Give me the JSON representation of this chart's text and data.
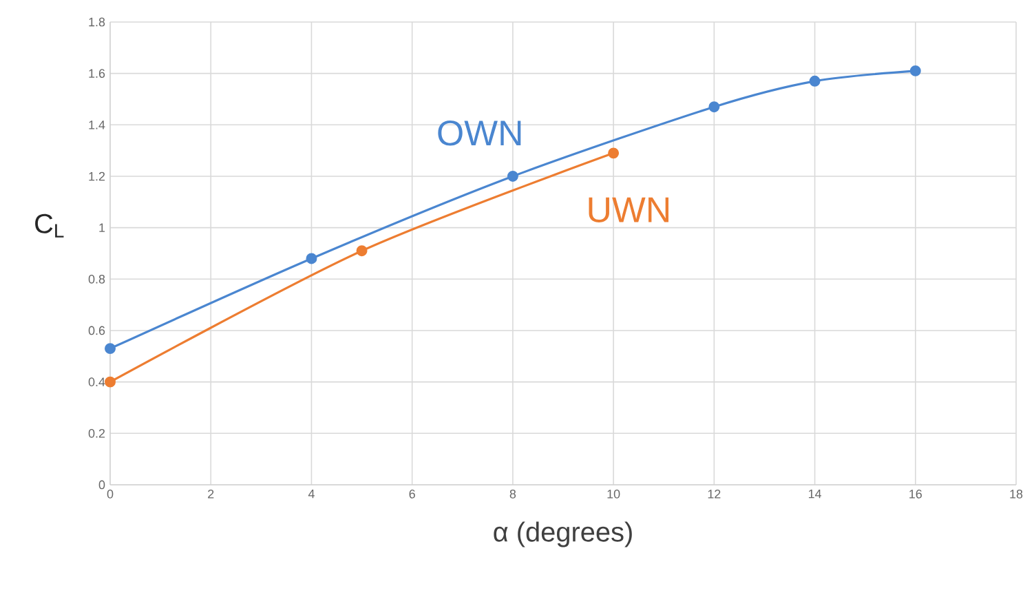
{
  "chart_data": {
    "type": "line",
    "xlabel": "α (degrees)",
    "ylabel": "C$_{L}$",
    "xlim": [
      0,
      18
    ],
    "xticks": [
      0,
      2,
      4,
      6,
      8,
      10,
      12,
      14,
      16,
      18
    ],
    "ylim": [
      0,
      1.8
    ],
    "yticks": [
      0,
      0.2,
      0.4,
      0.6,
      0.8,
      1,
      1.2,
      1.4,
      1.6,
      1.8
    ],
    "grid": true,
    "marker": "circle",
    "line_style": "solid",
    "series": [
      {
        "name": "OWN",
        "color": "#4a86d0",
        "x": [
          0,
          4,
          8,
          12,
          14,
          16
        ],
        "values": [
          0.53,
          0.88,
          1.2,
          1.47,
          1.57,
          1.61
        ]
      },
      {
        "name": "UWN",
        "color": "#ed7d31",
        "x": [
          0,
          5,
          10
        ],
        "values": [
          0.4,
          0.91,
          1.29
        ]
      }
    ]
  }
}
